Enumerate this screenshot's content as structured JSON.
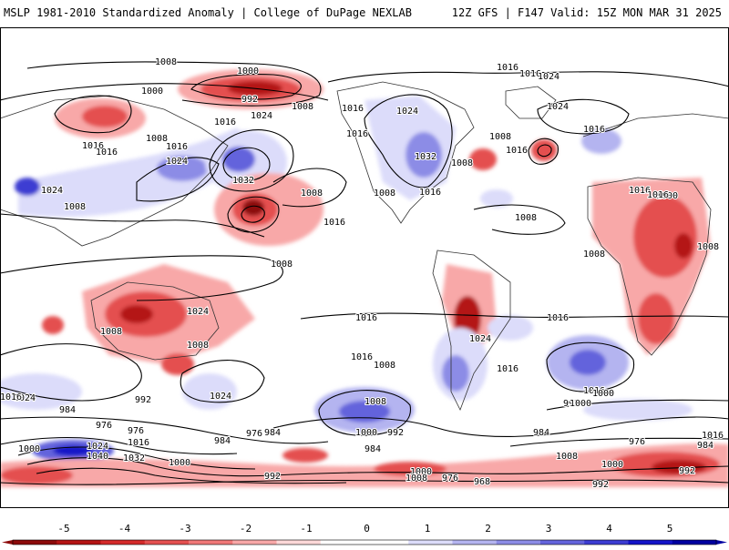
{
  "header": {
    "title_left": "MSLP 1981-2010 Standardized Anomaly | College of DuPage NEXLAB",
    "title_right": "12Z GFS | F147 Valid: 15Z MON MAR 31 2025"
  },
  "map": {
    "variable": "MSLP standardized anomaly",
    "contour_interval_hpa": 4,
    "isobar_labels": [
      {
        "text": "1008"
      },
      {
        "text": "1000"
      },
      {
        "text": "992"
      },
      {
        "text": "1000"
      },
      {
        "text": "1008"
      },
      {
        "text": "1016"
      },
      {
        "text": "1024"
      },
      {
        "text": "1008"
      },
      {
        "text": "1016"
      },
      {
        "text": "1024"
      },
      {
        "text": "1032"
      },
      {
        "text": "1016"
      },
      {
        "text": "1024"
      },
      {
        "text": "1016"
      },
      {
        "text": "1008"
      },
      {
        "text": "1024"
      },
      {
        "text": "1016"
      },
      {
        "text": "1016"
      },
      {
        "text": "1032"
      },
      {
        "text": "1024"
      },
      {
        "text": "1016"
      },
      {
        "text": "1016"
      },
      {
        "text": "1024"
      },
      {
        "text": "1016"
      },
      {
        "text": "1024"
      },
      {
        "text": "1016"
      },
      {
        "text": "1008"
      },
      {
        "text": "1016"
      },
      {
        "text": "1016"
      },
      {
        "text": "1008"
      },
      {
        "text": "1008"
      },
      {
        "text": "1008"
      },
      {
        "text": "1000"
      },
      {
        "text": "1016"
      },
      {
        "text": "1008"
      },
      {
        "text": "1008"
      },
      {
        "text": "1008"
      },
      {
        "text": "1016"
      },
      {
        "text": "1008"
      },
      {
        "text": "1008"
      },
      {
        "text": "1016"
      },
      {
        "text": "1016"
      },
      {
        "text": "1024"
      },
      {
        "text": "1016"
      },
      {
        "text": "1016"
      },
      {
        "text": "1024"
      },
      {
        "text": "992"
      },
      {
        "text": "1024"
      },
      {
        "text": "1016"
      },
      {
        "text": "1008"
      },
      {
        "text": "1016"
      },
      {
        "text": "1008"
      },
      {
        "text": "1008"
      },
      {
        "text": "1000"
      },
      {
        "text": "992"
      },
      {
        "text": "992"
      },
      {
        "text": "1000"
      },
      {
        "text": "984"
      },
      {
        "text": "976"
      },
      {
        "text": "976"
      },
      {
        "text": "1016"
      },
      {
        "text": "1024"
      },
      {
        "text": "1000"
      },
      {
        "text": "1040"
      },
      {
        "text": "1032"
      },
      {
        "text": "984"
      },
      {
        "text": "976"
      },
      {
        "text": "984"
      },
      {
        "text": "1000"
      },
      {
        "text": "1000"
      },
      {
        "text": "992"
      },
      {
        "text": "984"
      },
      {
        "text": "976"
      },
      {
        "text": "968"
      },
      {
        "text": "1000"
      },
      {
        "text": "984"
      },
      {
        "text": "976"
      },
      {
        "text": "1016"
      },
      {
        "text": "1008"
      },
      {
        "text": "992"
      },
      {
        "text": "984"
      },
      {
        "text": "1000"
      },
      {
        "text": "1008"
      },
      {
        "text": "992"
      }
    ],
    "anomaly_regions": [
      {
        "name": "north-pacific-low",
        "value": -3
      },
      {
        "name": "siberia-low",
        "value": -2
      },
      {
        "name": "east-asia-high",
        "value": 2
      },
      {
        "name": "north-pacific-high",
        "value": 2
      },
      {
        "name": "central-pacific-low",
        "value": -4
      },
      {
        "name": "north-america-high",
        "value": 2
      },
      {
        "name": "north-atlantic-low",
        "value": -3
      },
      {
        "name": "europe-high",
        "value": 1
      },
      {
        "name": "africa-low",
        "value": -3
      },
      {
        "name": "australia-low",
        "value": -3
      },
      {
        "name": "south-america-low",
        "value": -4
      },
      {
        "name": "south-atlantic-high",
        "value": 3
      },
      {
        "name": "south-pacific-high",
        "value": 3
      },
      {
        "name": "southern-ocean-high",
        "value": 4
      },
      {
        "name": "antarctic-low-belt",
        "value": -3
      }
    ]
  },
  "legend": {
    "ticks": [
      "-5",
      "-4",
      "-3",
      "-2",
      "-1",
      "0",
      "1",
      "2",
      "3",
      "4",
      "5"
    ],
    "colors": [
      "#8c0a0a",
      "#b41414",
      "#d42a2a",
      "#e45050",
      "#f07878",
      "#f8a8a8",
      "#fdd8d8",
      "#ffffff",
      "#ffffff",
      "#dcdcfa",
      "#b4b4f0",
      "#8c8ce6",
      "#6464dc",
      "#3c3cd2",
      "#1414c8",
      "#0000a0"
    ]
  }
}
